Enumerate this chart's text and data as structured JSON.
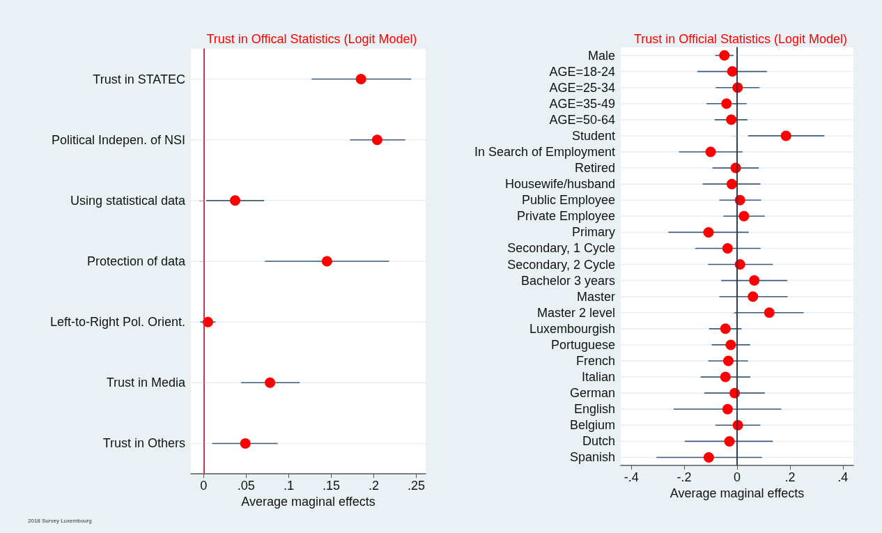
{
  "chart_data": [
    {
      "type": "scatter",
      "orientation": "horizontal",
      "title": "Trust in Offical Statistics (Logit Model)",
      "xlabel": "Average maginal effects",
      "categories": [
        "Trust in STATEC",
        "Political Indepen. of NSI",
        "Using statistical data",
        "Protection of data",
        "Left-to-Right Pol. Orient.",
        "Trust in Media",
        "Trust in Others"
      ],
      "series": [
        {
          "color": "#ff0000",
          "values": [
            0.185,
            0.204,
            0.037,
            0.145,
            0.005,
            0.078,
            0.049
          ],
          "errors": [
            [
              0.127,
              0.244
            ],
            [
              0.172,
              0.237
            ],
            [
              0.003,
              0.071
            ],
            [
              0.072,
              0.218
            ],
            [
              -0.004,
              0.014
            ],
            [
              0.044,
              0.113
            ],
            [
              0.01,
              0.087
            ]
          ]
        }
      ],
      "xlim": [
        -0.015,
        0.261
      ],
      "xticks": [
        0,
        {
          "value": 0.05,
          "label": ".05"
        },
        {
          "value": 0.1,
          "label": ".1"
        },
        {
          "value": 0.15,
          "label": ".15"
        },
        {
          "value": 0.2,
          "label": ".2"
        },
        {
          "value": 0.25,
          "label": ".25"
        }
      ],
      "ref_lines": [
        {
          "axis": "x",
          "value": 0,
          "color": "#d6204a"
        }
      ],
      "grid": "y",
      "marker": "circle",
      "annotations": [
        "2018 Survey Luxembourg"
      ]
    },
    {
      "type": "scatter",
      "orientation": "horizontal",
      "title": "Trust in Official Statistics (Logit Model)",
      "xlabel": "Average maginal effects",
      "categories": [
        "Male",
        "AGE=18-24",
        "AGE=25-34",
        "AGE=35-49",
        "AGE=50-64",
        "Student",
        "In Search of Employment",
        "Retired",
        "Housewife/husband",
        "Public Employee",
        "Private Employee",
        "Primary",
        "Secondary, 1 Cycle",
        "Secondary, 2 Cycle",
        "Bachelor 3 years",
        "Master",
        "Master 2 level",
        "Luxembourgish",
        "Portuguese",
        "French",
        "Italian",
        "German",
        "English",
        "Belgium",
        "Dutch",
        "Spanish"
      ],
      "series": [
        {
          "color": "#ff0000",
          "values": [
            -0.048,
            -0.018,
            0.002,
            -0.04,
            -0.022,
            0.185,
            -0.1,
            -0.005,
            -0.02,
            0.011,
            0.026,
            -0.108,
            -0.036,
            0.011,
            0.065,
            0.06,
            0.122,
            -0.044,
            -0.024,
            -0.033,
            -0.044,
            -0.009,
            -0.036,
            0.003,
            -0.029,
            -0.107
          ],
          "errors": [
            [
              -0.083,
              -0.013
            ],
            [
              -0.15,
              0.113
            ],
            [
              -0.081,
              0.085
            ],
            [
              -0.116,
              0.036
            ],
            [
              -0.085,
              0.039
            ],
            [
              0.042,
              0.33
            ],
            [
              -0.22,
              0.021
            ],
            [
              -0.093,
              0.082
            ],
            [
              -0.13,
              0.088
            ],
            [
              -0.067,
              0.091
            ],
            [
              -0.052,
              0.105
            ],
            [
              -0.26,
              0.044
            ],
            [
              -0.159,
              0.089
            ],
            [
              -0.11,
              0.135
            ],
            [
              -0.06,
              0.19
            ],
            [
              -0.067,
              0.191
            ],
            [
              -0.009,
              0.252
            ],
            [
              -0.106,
              0.017
            ],
            [
              -0.096,
              0.049
            ],
            [
              -0.109,
              0.041
            ],
            [
              -0.138,
              0.05
            ],
            [
              -0.124,
              0.105
            ],
            [
              -0.24,
              0.167
            ],
            [
              -0.082,
              0.088
            ],
            [
              -0.198,
              0.135
            ],
            [
              -0.305,
              0.094
            ]
          ]
        }
      ],
      "xlim": [
        -0.44,
        0.44
      ],
      "xticks": [
        {
          "value": -0.4,
          "label": "-.4"
        },
        {
          "value": -0.2,
          "label": "-.2"
        },
        0,
        {
          "value": 0.2,
          "label": ".2"
        },
        {
          "value": 0.4,
          "label": ".4"
        }
      ],
      "ref_lines": [
        {
          "axis": "x",
          "value": 0,
          "color": "#1c2f4a"
        }
      ],
      "grid": "y",
      "marker": "circle"
    }
  ]
}
